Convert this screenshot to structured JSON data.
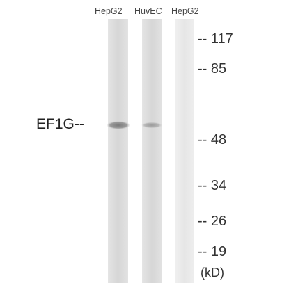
{
  "lanes": [
    {
      "label": "HepG2"
    },
    {
      "label": "HuvEC"
    },
    {
      "label": "HepG2"
    }
  ],
  "band_label": "EF1G--",
  "markers": [
    {
      "label": "-- 117"
    },
    {
      "label": "-- 85"
    },
    {
      "label": "-- 48"
    },
    {
      "label": "-- 34"
    },
    {
      "label": "-- 26"
    },
    {
      "label": "-- 19"
    }
  ],
  "unit_label": "(kD)"
}
